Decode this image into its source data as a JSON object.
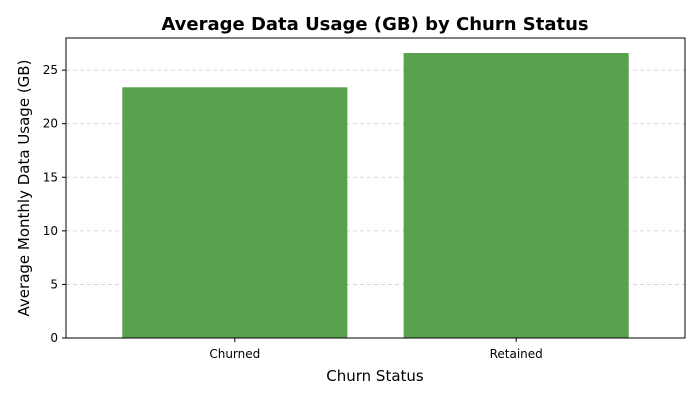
{
  "chart_data": {
    "type": "bar",
    "title": "Average Data Usage (GB) by Churn Status",
    "xlabel": "Churn Status",
    "ylabel": "Average Monthly Data Usage (GB)",
    "categories": [
      "Churned",
      "Retained"
    ],
    "values": [
      23.4,
      26.6
    ],
    "ylim": [
      0,
      28
    ],
    "yticks": [
      0,
      5,
      10,
      15,
      20,
      25
    ],
    "grid": "y-dashed",
    "bar_color": "#59a14f"
  }
}
